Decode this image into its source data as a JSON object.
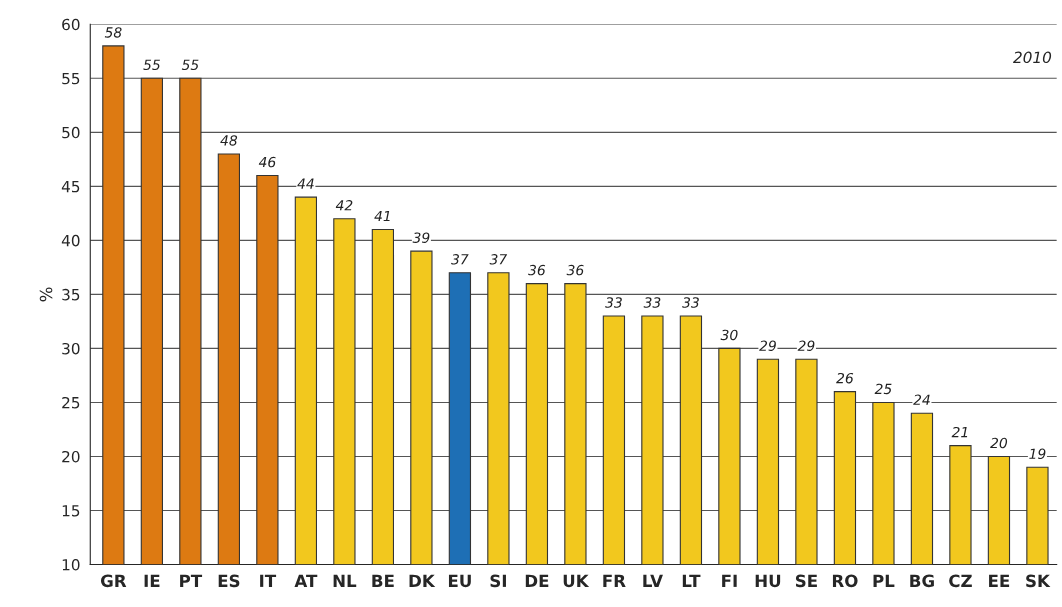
{
  "chart_data": {
    "type": "bar",
    "ylabel": "%",
    "categories": [
      "GR",
      "IE",
      "PT",
      "ES",
      "IT",
      "AT",
      "NL",
      "BE",
      "DK",
      "EU",
      "SI",
      "DE",
      "UK",
      "FR",
      "LV",
      "LT",
      "FI",
      "HU",
      "SE",
      "RO",
      "PL",
      "BG",
      "CZ",
      "EE",
      "SK"
    ],
    "values": [
      58,
      55,
      55,
      48,
      46,
      44,
      42,
      41,
      39,
      37,
      37,
      36,
      36,
      33,
      33,
      33,
      30,
      29,
      29,
      26,
      25,
      24,
      21,
      20,
      19
    ],
    "colors": [
      "#dd7a12",
      "#dd7a12",
      "#dd7a12",
      "#dd7a12",
      "#dd7a12",
      "#f2c81e",
      "#f2c81e",
      "#f2c81e",
      "#f2c81e",
      "#1e6fb5",
      "#f2c81e",
      "#f2c81e",
      "#f2c81e",
      "#f2c81e",
      "#f2c81e",
      "#f2c81e",
      "#f2c81e",
      "#f2c81e",
      "#f2c81e",
      "#f2c81e",
      "#f2c81e",
      "#f2c81e",
      "#f2c81e",
      "#f2c81e",
      "#f2c81e"
    ],
    "ylim": [
      10,
      60
    ],
    "yticks": [
      10,
      15,
      20,
      25,
      30,
      35,
      40,
      45,
      50,
      55,
      60
    ],
    "grid": "y",
    "data_labels": true,
    "annotations": [
      "2010"
    ]
  }
}
